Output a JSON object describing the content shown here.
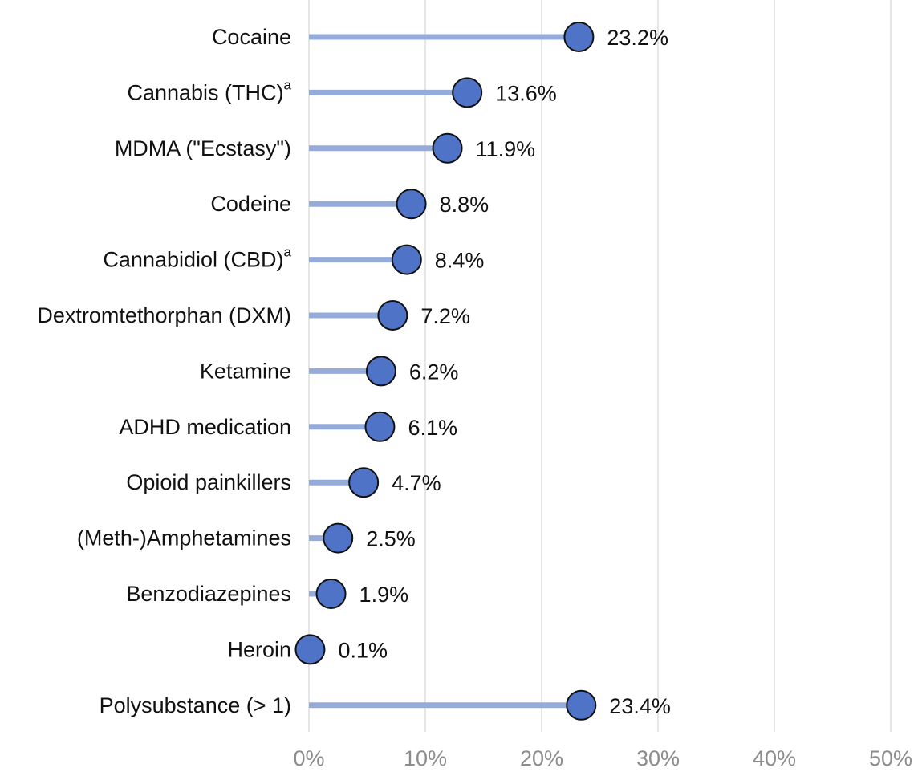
{
  "chart_data": {
    "type": "lollipop",
    "title": "",
    "xlabel": "",
    "ylabel": "",
    "xlim": [
      0,
      50
    ],
    "x_ticks": [
      0,
      10,
      20,
      30,
      40,
      50
    ],
    "x_tick_labels": [
      "0%",
      "10%",
      "20%",
      "30%",
      "40%",
      "50%"
    ],
    "grid": true,
    "categories": [
      {
        "label": "Cocaine",
        "sup": "",
        "value": 23.2,
        "value_label": "23.2%"
      },
      {
        "label": "Cannabis (THC)",
        "sup": "a",
        "value": 13.6,
        "value_label": "13.6%"
      },
      {
        "label": "MDMA (\"Ecstasy\")",
        "sup": "",
        "value": 11.9,
        "value_label": "11.9%"
      },
      {
        "label": "Codeine",
        "sup": "",
        "value": 8.8,
        "value_label": "8.8%"
      },
      {
        "label": "Cannabidiol (CBD)",
        "sup": "a",
        "value": 8.4,
        "value_label": "8.4%"
      },
      {
        "label": "Dextromtethorphan (DXM)",
        "sup": "",
        "value": 7.2,
        "value_label": "7.2%"
      },
      {
        "label": "Ketamine",
        "sup": "",
        "value": 6.2,
        "value_label": "6.2%"
      },
      {
        "label": "ADHD medication",
        "sup": "",
        "value": 6.1,
        "value_label": "6.1%"
      },
      {
        "label": "Opioid painkillers",
        "sup": "",
        "value": 4.7,
        "value_label": "4.7%"
      },
      {
        "label": "(Meth-)Amphetamines",
        "sup": "",
        "value": 2.5,
        "value_label": "2.5%"
      },
      {
        "label": "Benzodiazepines",
        "sup": "",
        "value": 1.9,
        "value_label": "1.9%"
      },
      {
        "label": "Heroin",
        "sup": "",
        "value": 0.1,
        "value_label": "0.1%"
      },
      {
        "label": "Polysubstance (> 1)",
        "sup": "",
        "value": 23.4,
        "value_label": "23.4%"
      }
    ],
    "colors": {
      "stem": "#95acdb",
      "dot_fill": "#4f74c7",
      "dot_stroke": "#111111",
      "grid": "#e6e6e6"
    }
  }
}
